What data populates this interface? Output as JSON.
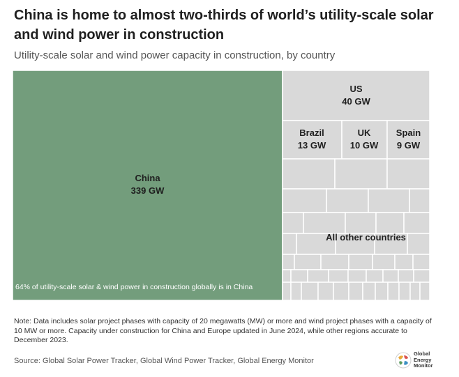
{
  "title": "China is home to almost two-thirds of world’s utility-scale solar and wind power in construction",
  "subtitle": "Utility-scale solar and wind power capacity in construction, by country",
  "note": "Note: Data includes solar project phases with capacity of 20 megawatts (MW) or more and wind project phases with a capacity of 10 MW or more. Capacity under construction for China and Europe updated in June 2024, while other regions accurate to December 2023.",
  "source": "Source: Global Solar Power Tracker, Global Wind Power Tracker, Global Energy Monitor",
  "logo": {
    "line1": "Global",
    "line2": "Energy",
    "line3": "Monitor"
  },
  "colors": {
    "china": "#739d7c",
    "other": "#d9d9d9",
    "border": "#ffffff",
    "text": "#1f1f1f"
  },
  "chart_data": {
    "type": "treemap",
    "unit": "GW",
    "items": [
      {
        "name": "China",
        "value": 339,
        "label": "339 GW"
      },
      {
        "name": "US",
        "value": 40,
        "label": "40 GW"
      },
      {
        "name": "Brazil",
        "value": 13,
        "label": "13 GW"
      },
      {
        "name": "UK",
        "value": 10,
        "label": "10 GW"
      },
      {
        "name": "Spain",
        "value": 9,
        "label": "9 GW"
      }
    ],
    "other_label": "All other countries",
    "annotation": "64% of utility-scale solar & wind power in construction globally is in China"
  }
}
